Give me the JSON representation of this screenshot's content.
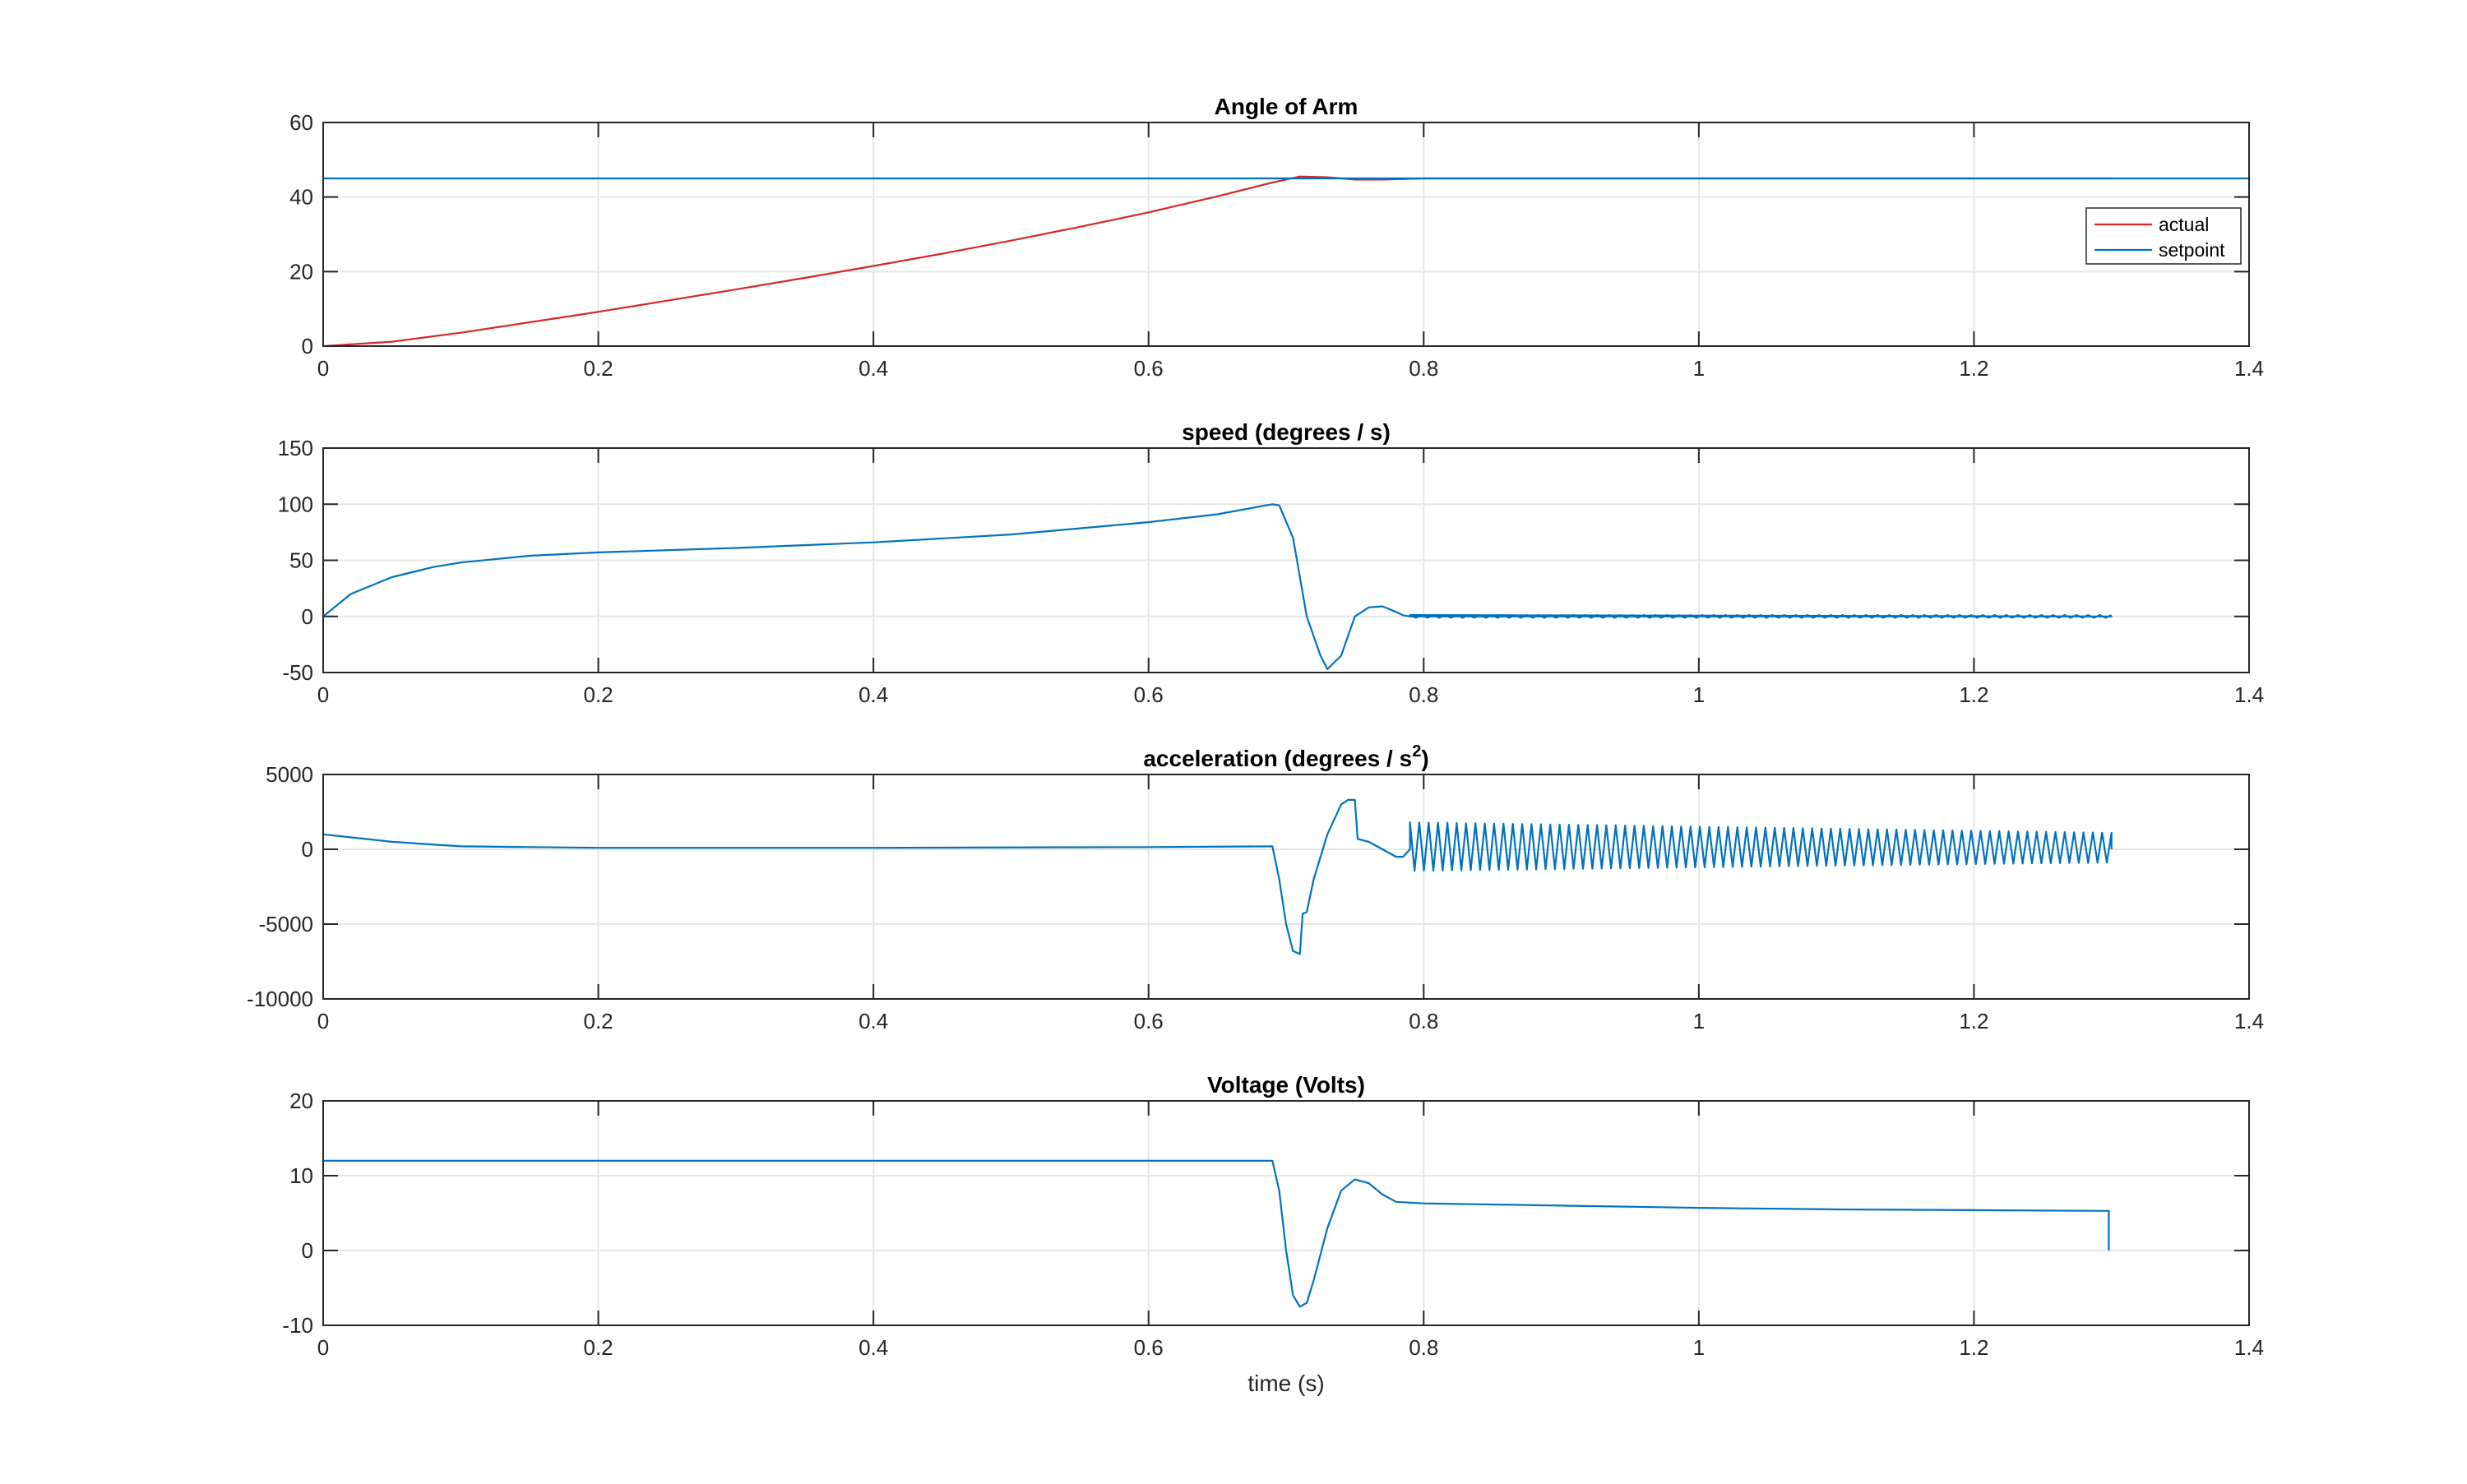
{
  "figure": {
    "xlabel": "time (s)"
  },
  "colors": {
    "actual": "#D62728",
    "setpoint": "#0072BD",
    "series": "#0072BD",
    "axis": "#262626",
    "grid": "#e6e6e6"
  },
  "chart_data": [
    {
      "type": "line",
      "title": "Angle of Arm",
      "xlabel": "",
      "ylabel": "",
      "xlim": [
        0,
        1.4
      ],
      "ylim": [
        0,
        60
      ],
      "xticks": [
        "0",
        "0.2",
        "0.4",
        "0.6",
        "0.8",
        "1",
        "1.2",
        "1.4"
      ],
      "yticks": [
        "0",
        "20",
        "40",
        "60"
      ],
      "grid": true,
      "legend": "upper-right",
      "series": [
        {
          "name": "actual",
          "color": "#D62728",
          "x": [
            0,
            0.05,
            0.1,
            0.15,
            0.2,
            0.25,
            0.3,
            0.35,
            0.4,
            0.45,
            0.5,
            0.55,
            0.6,
            0.65,
            0.69,
            0.71,
            0.73,
            0.75,
            0.77,
            0.8,
            0.9,
            1.0,
            1.1,
            1.2,
            1.3
          ],
          "y": [
            0,
            1.2,
            3.6,
            6.4,
            9.2,
            12.2,
            15.2,
            18.3,
            21.5,
            24.8,
            28.3,
            32.0,
            35.9,
            40.2,
            43.9,
            45.5,
            45.3,
            44.7,
            44.7,
            45.0,
            45.0,
            45.0,
            45.0,
            45.0,
            45.0
          ]
        },
        {
          "name": "setpoint",
          "color": "#0072BD",
          "x": [
            0,
            1.4
          ],
          "y": [
            45,
            45
          ]
        }
      ]
    },
    {
      "type": "line",
      "title": "speed (degrees / s)",
      "xlabel": "",
      "ylabel": "",
      "xlim": [
        0,
        1.4
      ],
      "ylim": [
        -50,
        150
      ],
      "xticks": [
        "0",
        "0.2",
        "0.4",
        "0.6",
        "0.8",
        "1",
        "1.2",
        "1.4"
      ],
      "yticks": [
        "-50",
        "0",
        "50",
        "100",
        "150"
      ],
      "grid": true,
      "series": [
        {
          "color": "#0072BD",
          "x": [
            0,
            0.02,
            0.05,
            0.08,
            0.1,
            0.15,
            0.2,
            0.3,
            0.4,
            0.5,
            0.6,
            0.65,
            0.69,
            0.695,
            0.705,
            0.715,
            0.725,
            0.73,
            0.74,
            0.75,
            0.76,
            0.77,
            0.78,
            0.785,
            0.79,
            0.9,
            1.0,
            1.1,
            1.2,
            1.3
          ],
          "y": [
            0,
            20,
            35,
            44,
            48,
            54,
            57,
            61,
            66,
            73,
            84,
            91,
            100,
            99,
            70,
            0,
            -35,
            -47,
            -35,
            0,
            8,
            9,
            4,
            1,
            0,
            0,
            0,
            0,
            0,
            0
          ]
        }
      ]
    },
    {
      "type": "line",
      "title": "acceleration (degrees / s",
      "title_superscript": "2",
      "title_suffix": ")",
      "xlabel": "",
      "ylabel": "",
      "xlim": [
        0,
        1.4
      ],
      "ylim": [
        -10000,
        5000
      ],
      "xticks": [
        "0",
        "0.2",
        "0.4",
        "0.6",
        "0.8",
        "1",
        "1.2",
        "1.4"
      ],
      "yticks": [
        "-10000",
        "-5000",
        "0",
        "5000"
      ],
      "grid": true,
      "oscillation": {
        "x_start": 0.79,
        "x_end": 1.3,
        "amplitude_start": 1800,
        "amplitude_end": 1100
      },
      "series": [
        {
          "color": "#0072BD",
          "x": [
            0,
            0.05,
            0.1,
            0.2,
            0.4,
            0.6,
            0.69,
            0.695,
            0.7,
            0.705,
            0.71,
            0.712,
            0.715,
            0.72,
            0.73,
            0.74,
            0.745,
            0.75,
            0.752,
            0.76,
            0.77,
            0.78,
            0.785,
            0.79
          ],
          "y": [
            1000,
            500,
            200,
            100,
            100,
            150,
            200,
            -2000,
            -5000,
            -6800,
            -7000,
            -4300,
            -4200,
            -2000,
            1000,
            3000,
            3300,
            3300,
            700,
            500,
            0,
            -500,
            -500,
            0
          ]
        }
      ]
    },
    {
      "type": "line",
      "title": "Voltage (Volts)",
      "xlabel": "time (s)",
      "ylabel": "",
      "xlim": [
        0,
        1.4
      ],
      "ylim": [
        -10,
        20
      ],
      "xticks": [
        "0",
        "0.2",
        "0.4",
        "0.6",
        "0.8",
        "1",
        "1.2",
        "1.4"
      ],
      "yticks": [
        "-10",
        "0",
        "10",
        "20"
      ],
      "grid": true,
      "series": [
        {
          "color": "#0072BD",
          "x": [
            0,
            0.69,
            0.695,
            0.7,
            0.705,
            0.71,
            0.715,
            0.72,
            0.73,
            0.74,
            0.75,
            0.76,
            0.77,
            0.78,
            0.8,
            0.9,
            1.0,
            1.1,
            1.2,
            1.297,
            1.298,
            1.298
          ],
          "y": [
            12,
            12,
            8,
            0,
            -6,
            -7.5,
            -7,
            -4,
            3,
            8,
            9.5,
            9,
            7.5,
            6.5,
            6.3,
            6.0,
            5.7,
            5.5,
            5.4,
            5.3,
            5.3,
            0
          ]
        }
      ]
    }
  ]
}
